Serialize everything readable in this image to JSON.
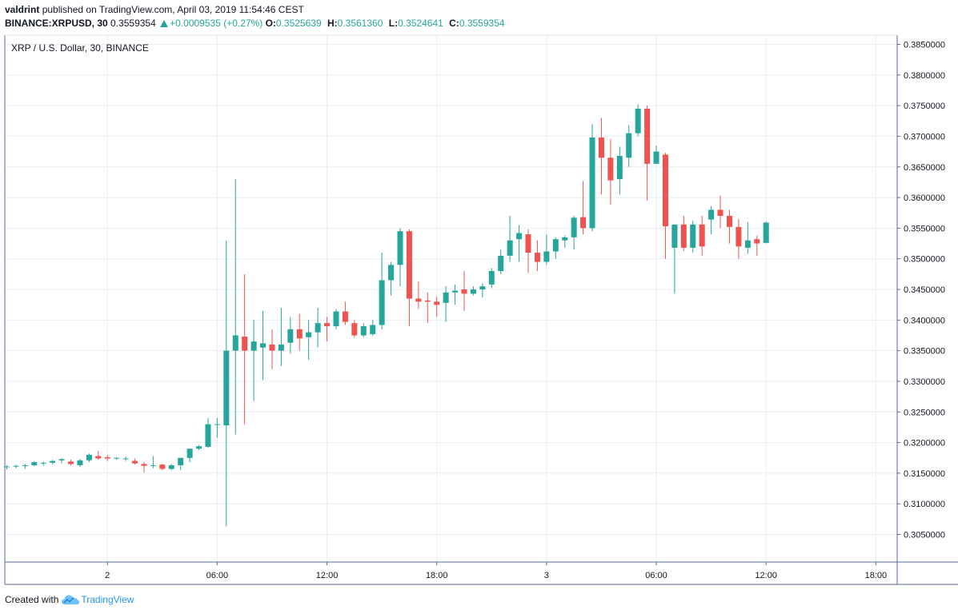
{
  "header": {
    "user": "valdrint",
    "published_text": "published on TradingView.com, April 03, 2019 11:54:46 CEST",
    "symbol": "BINANCE:XRPUSD, 30",
    "last": "0.3559354",
    "change": "+0.0009535 (+0.27%)",
    "o_label": "O:",
    "o_value": "0.3525639",
    "h_label": "H:",
    "h_value": "0.3561360",
    "l_label": "L:",
    "l_value": "0.3524641",
    "c_label": "C:",
    "c_value": "0.3559354"
  },
  "footer": {
    "created_with": "Created with",
    "brand": "TradingView"
  },
  "colors": {
    "up": "#26a69a",
    "down": "#ef5350",
    "grid": "#e9eef3",
    "axis": "#5d6a93"
  },
  "chart_data": {
    "type": "candlestick",
    "title": "XRP / U.S. Dollar, 30, BINANCE",
    "ylim": [
      0.3005,
      0.3865
    ],
    "y_ticks": [
      "0.3050000",
      "0.3100000",
      "0.3150000",
      "0.3200000",
      "0.3250000",
      "0.3300000",
      "0.3350000",
      "0.3400000",
      "0.3450000",
      "0.3500000",
      "0.3550000",
      "0.3600000",
      "0.3650000",
      "0.3700000",
      "0.3750000",
      "0.3800000",
      "0.3850000"
    ],
    "x_ticks": [
      {
        "bar": 11,
        "label": "2"
      },
      {
        "bar": 23,
        "label": "06:00"
      },
      {
        "bar": 35,
        "label": "12:00"
      },
      {
        "bar": 47,
        "label": "18:00"
      },
      {
        "bar": 59,
        "label": "3"
      },
      {
        "bar": 71,
        "label": "06:00"
      },
      {
        "bar": 83,
        "label": "12:00"
      },
      {
        "bar": 95,
        "label": "18:00"
      }
    ],
    "candles": [
      [
        0.316,
        0.3163,
        0.3156,
        0.3161
      ],
      [
        0.3161,
        0.3164,
        0.3158,
        0.3162
      ],
      [
        0.3162,
        0.3165,
        0.3157,
        0.3163
      ],
      [
        0.3163,
        0.317,
        0.3161,
        0.3168
      ],
      [
        0.3166,
        0.3169,
        0.3162,
        0.3167
      ],
      [
        0.3167,
        0.3172,
        0.3164,
        0.317
      ],
      [
        0.3171,
        0.3175,
        0.3166,
        0.3173
      ],
      [
        0.3169,
        0.3172,
        0.3163,
        0.3165
      ],
      [
        0.3163,
        0.3173,
        0.316,
        0.3171
      ],
      [
        0.3171,
        0.3182,
        0.3168,
        0.318
      ],
      [
        0.3178,
        0.3186,
        0.3172,
        0.3174
      ],
      [
        0.3176,
        0.318,
        0.317,
        0.3174
      ],
      [
        0.3174,
        0.3176,
        0.3172,
        0.3175
      ],
      [
        0.3174,
        0.3177,
        0.317,
        0.3174
      ],
      [
        0.317,
        0.3174,
        0.3164,
        0.3166
      ],
      [
        0.3165,
        0.3168,
        0.3151,
        0.3162
      ],
      [
        0.3162,
        0.3178,
        0.3158,
        0.3163
      ],
      [
        0.3164,
        0.3165,
        0.3155,
        0.3157
      ],
      [
        0.3157,
        0.3165,
        0.3155,
        0.3163
      ],
      [
        0.3163,
        0.3175,
        0.3155,
        0.3175
      ],
      [
        0.3175,
        0.319,
        0.3168,
        0.319
      ],
      [
        0.319,
        0.3196,
        0.3188,
        0.3194
      ],
      [
        0.3193,
        0.324,
        0.3192,
        0.323
      ],
      [
        0.3229,
        0.324,
        0.3208,
        0.323
      ],
      [
        0.3228,
        0.353,
        0.3063,
        0.335
      ],
      [
        0.335,
        0.363,
        0.3213,
        0.3375
      ],
      [
        0.3373,
        0.3475,
        0.323,
        0.335
      ],
      [
        0.335,
        0.34,
        0.3268,
        0.3365
      ],
      [
        0.3355,
        0.3415,
        0.3302,
        0.3362
      ],
      [
        0.336,
        0.3385,
        0.332,
        0.335
      ],
      [
        0.335,
        0.342,
        0.3325,
        0.336
      ],
      [
        0.3363,
        0.3405,
        0.3345,
        0.3385
      ],
      [
        0.3385,
        0.341,
        0.335,
        0.337
      ],
      [
        0.3372,
        0.34,
        0.3335,
        0.338
      ],
      [
        0.338,
        0.342,
        0.3355,
        0.3395
      ],
      [
        0.3395,
        0.3405,
        0.3365,
        0.339
      ],
      [
        0.339,
        0.3418,
        0.3385,
        0.3414
      ],
      [
        0.3414,
        0.343,
        0.3392,
        0.3397
      ],
      [
        0.3395,
        0.34,
        0.3371,
        0.3375
      ],
      [
        0.3375,
        0.3395,
        0.3372,
        0.339
      ],
      [
        0.3377,
        0.34,
        0.3374,
        0.3392
      ],
      [
        0.3392,
        0.351,
        0.3385,
        0.3465
      ],
      [
        0.3465,
        0.3495,
        0.344,
        0.349
      ],
      [
        0.349,
        0.355,
        0.3455,
        0.3545
      ],
      [
        0.3545,
        0.3548,
        0.339,
        0.3435
      ],
      [
        0.3435,
        0.3463,
        0.3418,
        0.343
      ],
      [
        0.3432,
        0.3445,
        0.3395,
        0.343
      ],
      [
        0.343,
        0.3438,
        0.3405,
        0.3425
      ],
      [
        0.3428,
        0.3455,
        0.3397,
        0.3445
      ],
      [
        0.3445,
        0.3458,
        0.3425,
        0.3448
      ],
      [
        0.345,
        0.348,
        0.3415,
        0.3443
      ],
      [
        0.3443,
        0.3455,
        0.344,
        0.345
      ],
      [
        0.345,
        0.346,
        0.3437,
        0.3455
      ],
      [
        0.3458,
        0.3485,
        0.3452,
        0.348
      ],
      [
        0.348,
        0.3515,
        0.3475,
        0.3505
      ],
      [
        0.3505,
        0.357,
        0.3495,
        0.353
      ],
      [
        0.3532,
        0.3555,
        0.3495,
        0.3542
      ],
      [
        0.354,
        0.3548,
        0.3477,
        0.351
      ],
      [
        0.351,
        0.353,
        0.348,
        0.3495
      ],
      [
        0.3495,
        0.354,
        0.349,
        0.3512
      ],
      [
        0.3512,
        0.3535,
        0.35,
        0.3532
      ],
      [
        0.353,
        0.3538,
        0.3518,
        0.3535
      ],
      [
        0.3535,
        0.357,
        0.3515,
        0.3567
      ],
      [
        0.3568,
        0.3627,
        0.354,
        0.355
      ],
      [
        0.355,
        0.372,
        0.3545,
        0.3698
      ],
      [
        0.3698,
        0.373,
        0.3605,
        0.3665
      ],
      [
        0.3665,
        0.3695,
        0.3588,
        0.3628
      ],
      [
        0.363,
        0.3683,
        0.3605,
        0.3668
      ],
      [
        0.3665,
        0.3718,
        0.365,
        0.3705
      ],
      [
        0.3705,
        0.3752,
        0.37,
        0.3745
      ],
      [
        0.3745,
        0.375,
        0.3595,
        0.3655
      ],
      [
        0.3655,
        0.3685,
        0.3655,
        0.3675
      ],
      [
        0.367,
        0.3673,
        0.35,
        0.3553
      ],
      [
        0.3518,
        0.3552,
        0.3443,
        0.3556
      ],
      [
        0.3556,
        0.357,
        0.3513,
        0.3518
      ],
      [
        0.3518,
        0.3562,
        0.351,
        0.3556
      ],
      [
        0.3556,
        0.357,
        0.3505,
        0.352
      ],
      [
        0.3564,
        0.3586,
        0.354,
        0.358
      ],
      [
        0.358,
        0.3603,
        0.355,
        0.357
      ],
      [
        0.357,
        0.358,
        0.3525,
        0.3552
      ],
      [
        0.3552,
        0.3565,
        0.35,
        0.352
      ],
      [
        0.3518,
        0.356,
        0.3508,
        0.353
      ],
      [
        0.3532,
        0.3538,
        0.3505,
        0.3525
      ],
      [
        0.3526,
        0.3561,
        0.3525,
        0.3559
      ]
    ]
  }
}
